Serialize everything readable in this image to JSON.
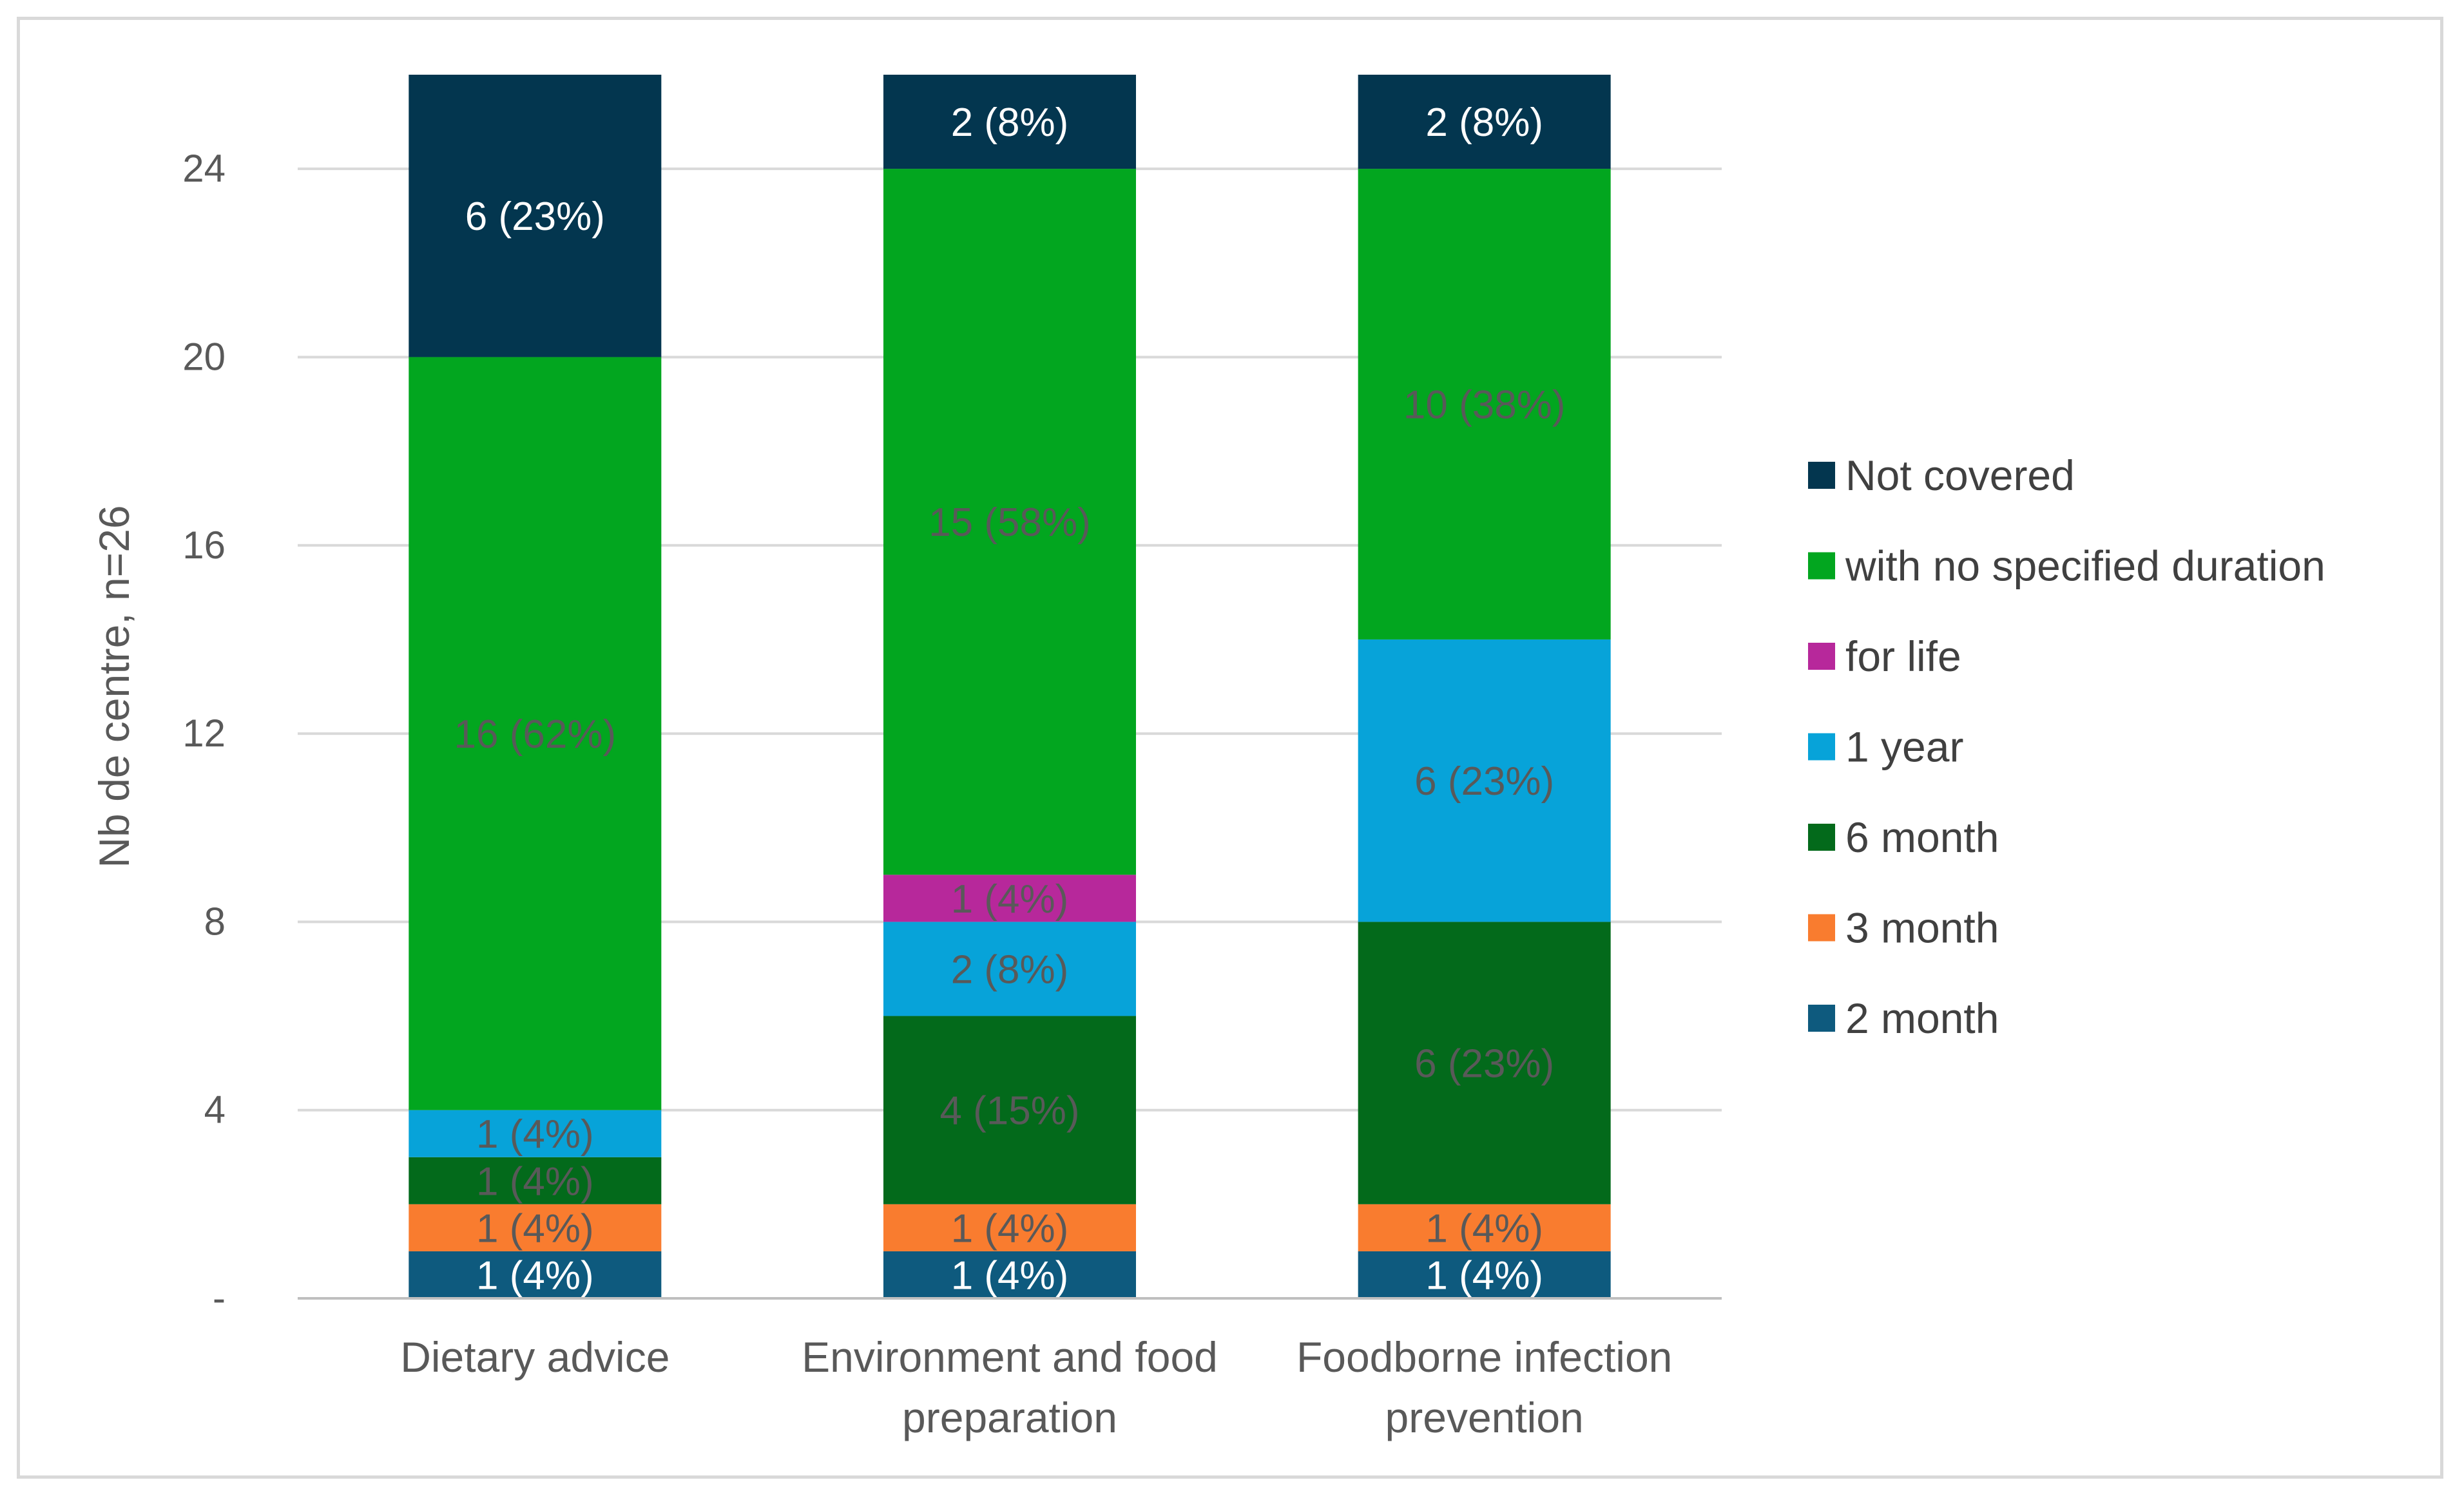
{
  "chart_data": {
    "type": "bar",
    "stacked": true,
    "title": "",
    "xlabel": "",
    "ylabel": "Nb de centre, n=26",
    "ylim": [
      0,
      26
    ],
    "yticks": [
      0,
      4,
      8,
      12,
      16,
      20,
      24
    ],
    "ytick_labels": [
      "-",
      "4",
      "8",
      "12",
      "16",
      "20",
      "24"
    ],
    "grid": true,
    "legend_position": "right",
    "categories": [
      [
        "Dietary advice"
      ],
      [
        "Environment and food",
        "preparation"
      ],
      [
        "Foodborne infection",
        "prevention"
      ]
    ],
    "series": [
      {
        "name": "2 month",
        "color": "#0e5a7e",
        "label_color": "#ffffff",
        "values": [
          1,
          1,
          1
        ],
        "labels": [
          "1 (4%)",
          "1 (4%)",
          "1 (4%)"
        ]
      },
      {
        "name": "3 month",
        "color": "#f97c2f",
        "label_color": "#595959",
        "values": [
          1,
          1,
          1
        ],
        "labels": [
          "1 (4%)",
          "1 (4%)",
          "1 (4%)"
        ]
      },
      {
        "name": "6 month",
        "color": "#036a1b",
        "label_color": "#595959",
        "values": [
          1,
          4,
          6
        ],
        "labels": [
          "1 (4%)",
          "4 (15%)",
          "6 (23%)"
        ]
      },
      {
        "name": "1 year",
        "color": "#07a3d9",
        "label_color": "#595959",
        "values": [
          1,
          2,
          6
        ],
        "labels": [
          "1 (4%)",
          "2 (8%)",
          "6 (23%)"
        ]
      },
      {
        "name": "for life",
        "color": "#b7289b",
        "label_color": "#595959",
        "values": [
          0,
          1,
          0
        ],
        "labels": [
          "",
          "1 (4%)",
          ""
        ]
      },
      {
        "name": "with no specified duration",
        "color": "#02a61f",
        "label_color": "#595959",
        "values": [
          16,
          15,
          10
        ],
        "labels": [
          "16 (62%)",
          "15 (58%)",
          "10 (38%)"
        ]
      },
      {
        "name": "Not  covered",
        "color": "#03364f",
        "label_color": "#ffffff",
        "values": [
          6,
          2,
          2
        ],
        "labels": [
          "6 (23%)",
          "2 (8%)",
          "2 (8%)"
        ]
      }
    ],
    "legend_order": [
      "Not  covered",
      "with no specified duration",
      "for life",
      "1 year",
      "6 month",
      "3 month",
      "2 month"
    ],
    "gridline_color": "#d9d9d9",
    "axis_color": "#bfbfbf"
  }
}
